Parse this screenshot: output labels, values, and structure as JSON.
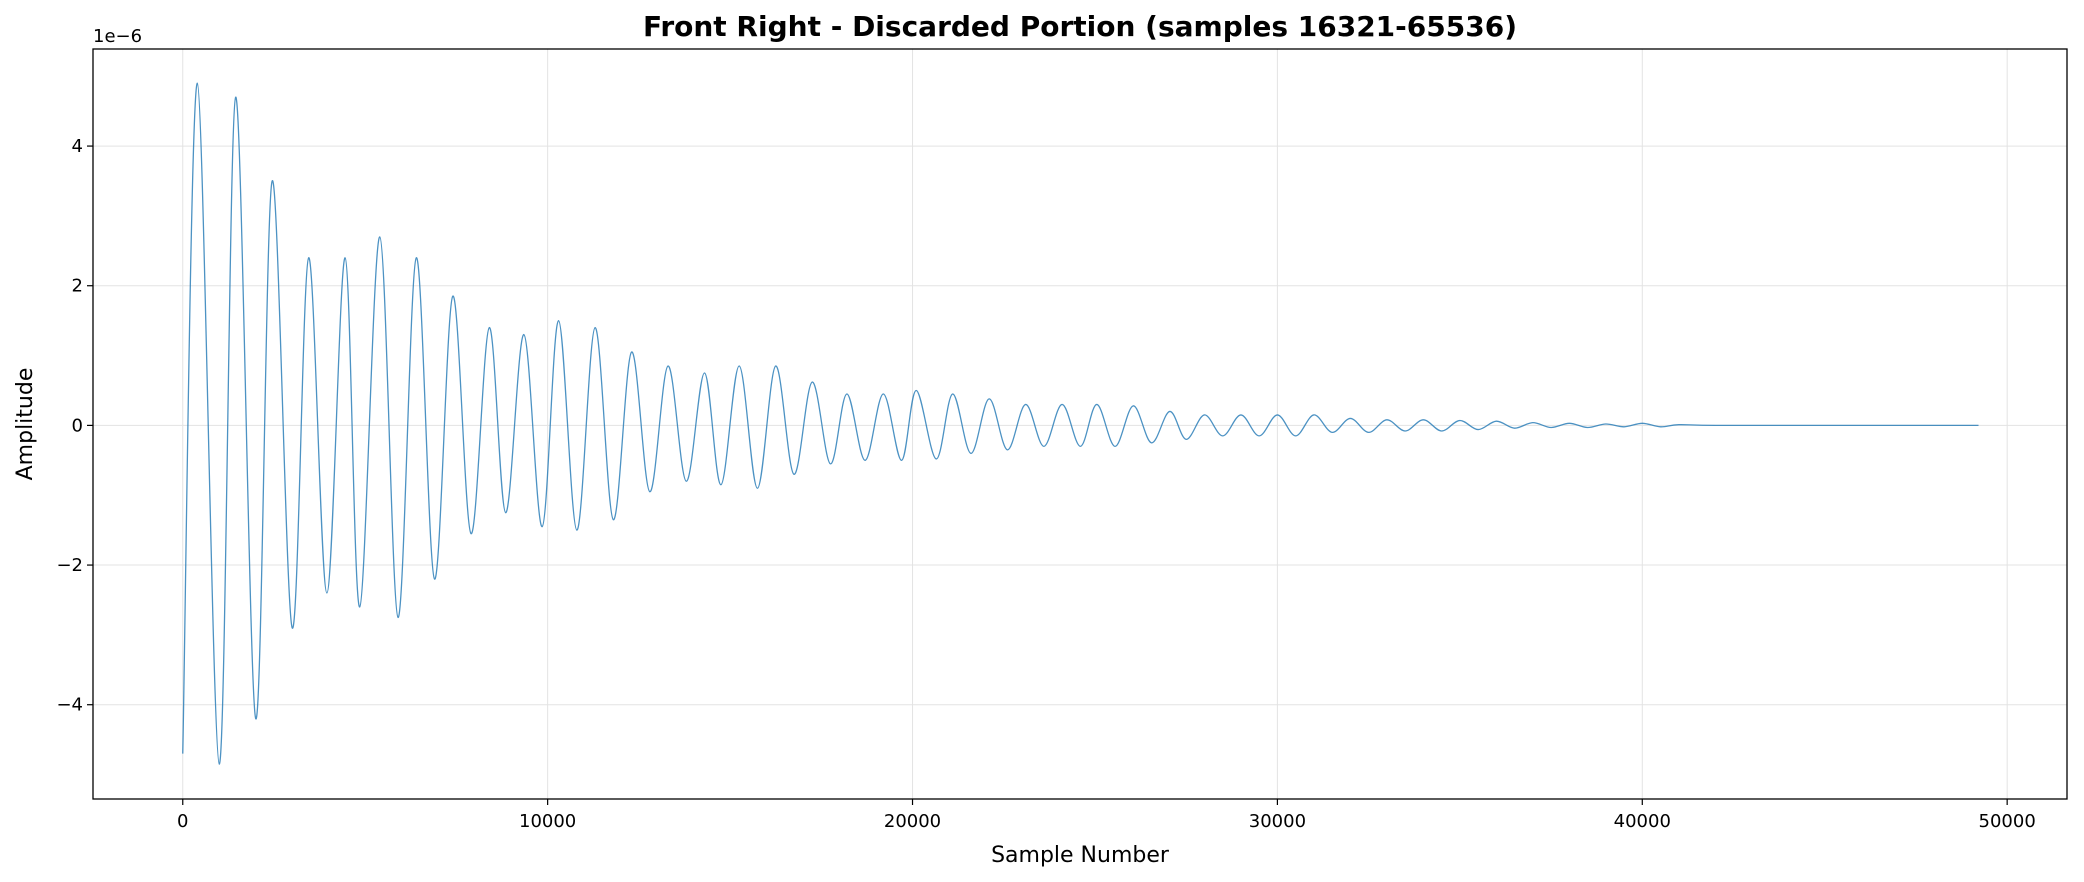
{
  "chart_data": {
    "type": "line",
    "title": "Front Right - Discarded Portion (samples 16321-65536)",
    "xlabel": "Sample Number",
    "ylabel": "Amplitude",
    "y_offset_label": "1e−6",
    "color": "#1f77b4",
    "grid": true,
    "xlim": [
      -2460,
      51640
    ],
    "ylim": [
      -5.35,
      5.39
    ],
    "xticks": [
      0,
      10000,
      20000,
      30000,
      40000,
      50000
    ],
    "yticks": [
      {
        "value": -4,
        "label": "−4"
      },
      {
        "value": -2,
        "label": "−2"
      },
      0,
      2,
      4
    ],
    "x": [
      0,
      400,
      1000,
      1450,
      2000,
      2450,
      3000,
      3450,
      3950,
      4450,
      4850,
      5400,
      5900,
      6400,
      6900,
      7400,
      7900,
      8400,
      8850,
      9350,
      9850,
      10300,
      10800,
      11300,
      11800,
      12300,
      12800,
      13300,
      13800,
      14300,
      14750,
      15250,
      15750,
      16250,
      16750,
      17250,
      17750,
      18200,
      18700,
      19200,
      19700,
      20100,
      20650,
      21100,
      21600,
      22100,
      22600,
      23100,
      23600,
      24100,
      24600,
      25050,
      25550,
      26050,
      26550,
      27050,
      27500,
      28000,
      28500,
      29000,
      29500,
      30000,
      30500,
      31000,
      31500,
      32000,
      32500,
      33000,
      33500,
      34000,
      34500,
      35000,
      35500,
      36000,
      36500,
      37000,
      37500,
      38000,
      38500,
      39000,
      39500,
      40000,
      40500,
      41000,
      42000,
      45000,
      49215
    ],
    "values": [
      -4.7,
      4.9,
      -4.85,
      4.7,
      -4.2,
      3.5,
      -2.9,
      2.4,
      -2.4,
      2.4,
      -2.6,
      2.7,
      -2.75,
      2.4,
      -2.2,
      1.85,
      -1.55,
      1.4,
      -1.25,
      1.3,
      -1.45,
      1.5,
      -1.5,
      1.4,
      -1.35,
      1.05,
      -0.95,
      0.85,
      -0.8,
      0.75,
      -0.85,
      0.85,
      -0.9,
      0.85,
      -0.7,
      0.62,
      -0.55,
      0.45,
      -0.5,
      0.45,
      -0.5,
      0.5,
      -0.48,
      0.45,
      -0.4,
      0.38,
      -0.35,
      0.3,
      -0.3,
      0.3,
      -0.3,
      0.3,
      -0.3,
      0.28,
      -0.25,
      0.2,
      -0.2,
      0.15,
      -0.15,
      0.15,
      -0.15,
      0.15,
      -0.15,
      0.15,
      -0.1,
      0.1,
      -0.1,
      0.08,
      -0.08,
      0.08,
      -0.08,
      0.07,
      -0.06,
      0.06,
      -0.04,
      0.04,
      -0.03,
      0.03,
      -0.03,
      0.02,
      -0.02,
      0.03,
      -0.02,
      0.01,
      0,
      0,
      0
    ]
  }
}
